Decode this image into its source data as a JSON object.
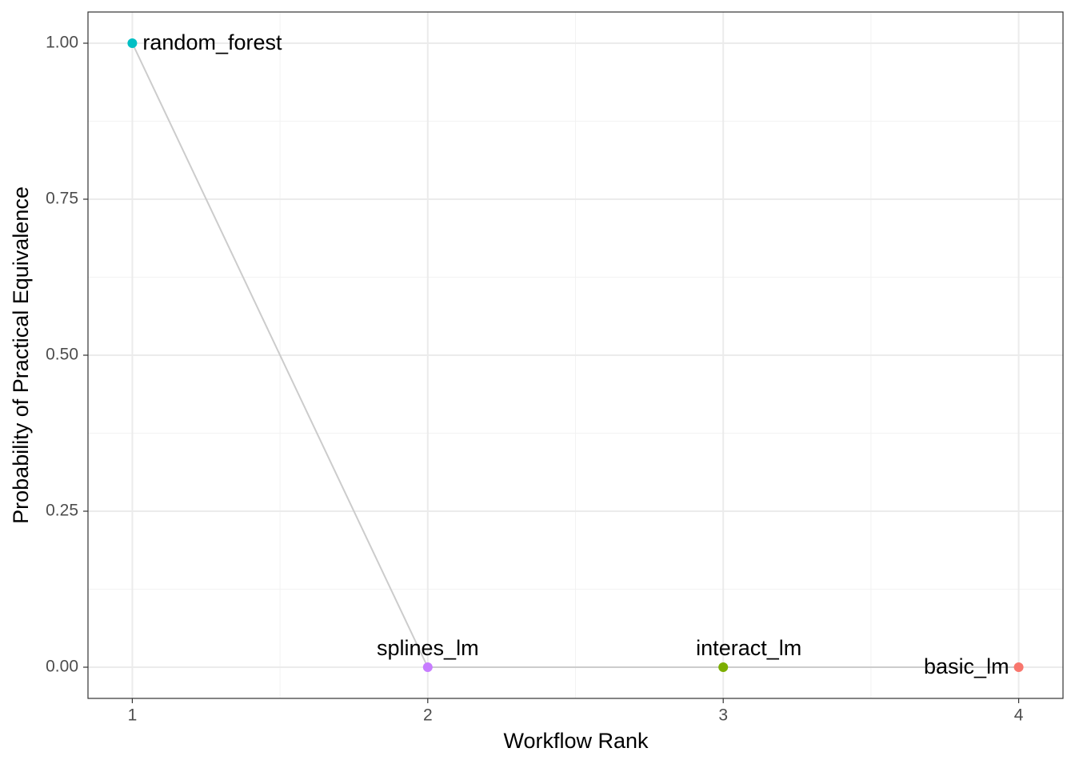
{
  "chart_data": {
    "type": "line",
    "xlabel": "Workflow Rank",
    "ylabel": "Probability of Practical Equivalence",
    "x": [
      1,
      2,
      3,
      4
    ],
    "values": [
      1.0,
      0,
      0,
      0
    ],
    "labels": [
      "random_forest",
      "splines_lm",
      "interact_lm",
      "basic_lm"
    ],
    "colors": [
      "#00BFC4",
      "#C77CFF",
      "#7CAE00",
      "#F8766D"
    ],
    "line_color": "#cccccc",
    "xlim": [
      0.85,
      4.15
    ],
    "ylim": [
      -0.05,
      1.05
    ],
    "xticks": [
      1,
      2,
      3,
      4
    ],
    "yticks": [
      {
        "value": 0,
        "label": "0.00"
      },
      {
        "value": 0.25,
        "label": "0.25"
      },
      {
        "value": 0.5,
        "label": "0.50"
      },
      {
        "value": 0.75,
        "label": "0.75"
      },
      {
        "value": 1,
        "label": "1.00"
      }
    ],
    "grid": true
  }
}
